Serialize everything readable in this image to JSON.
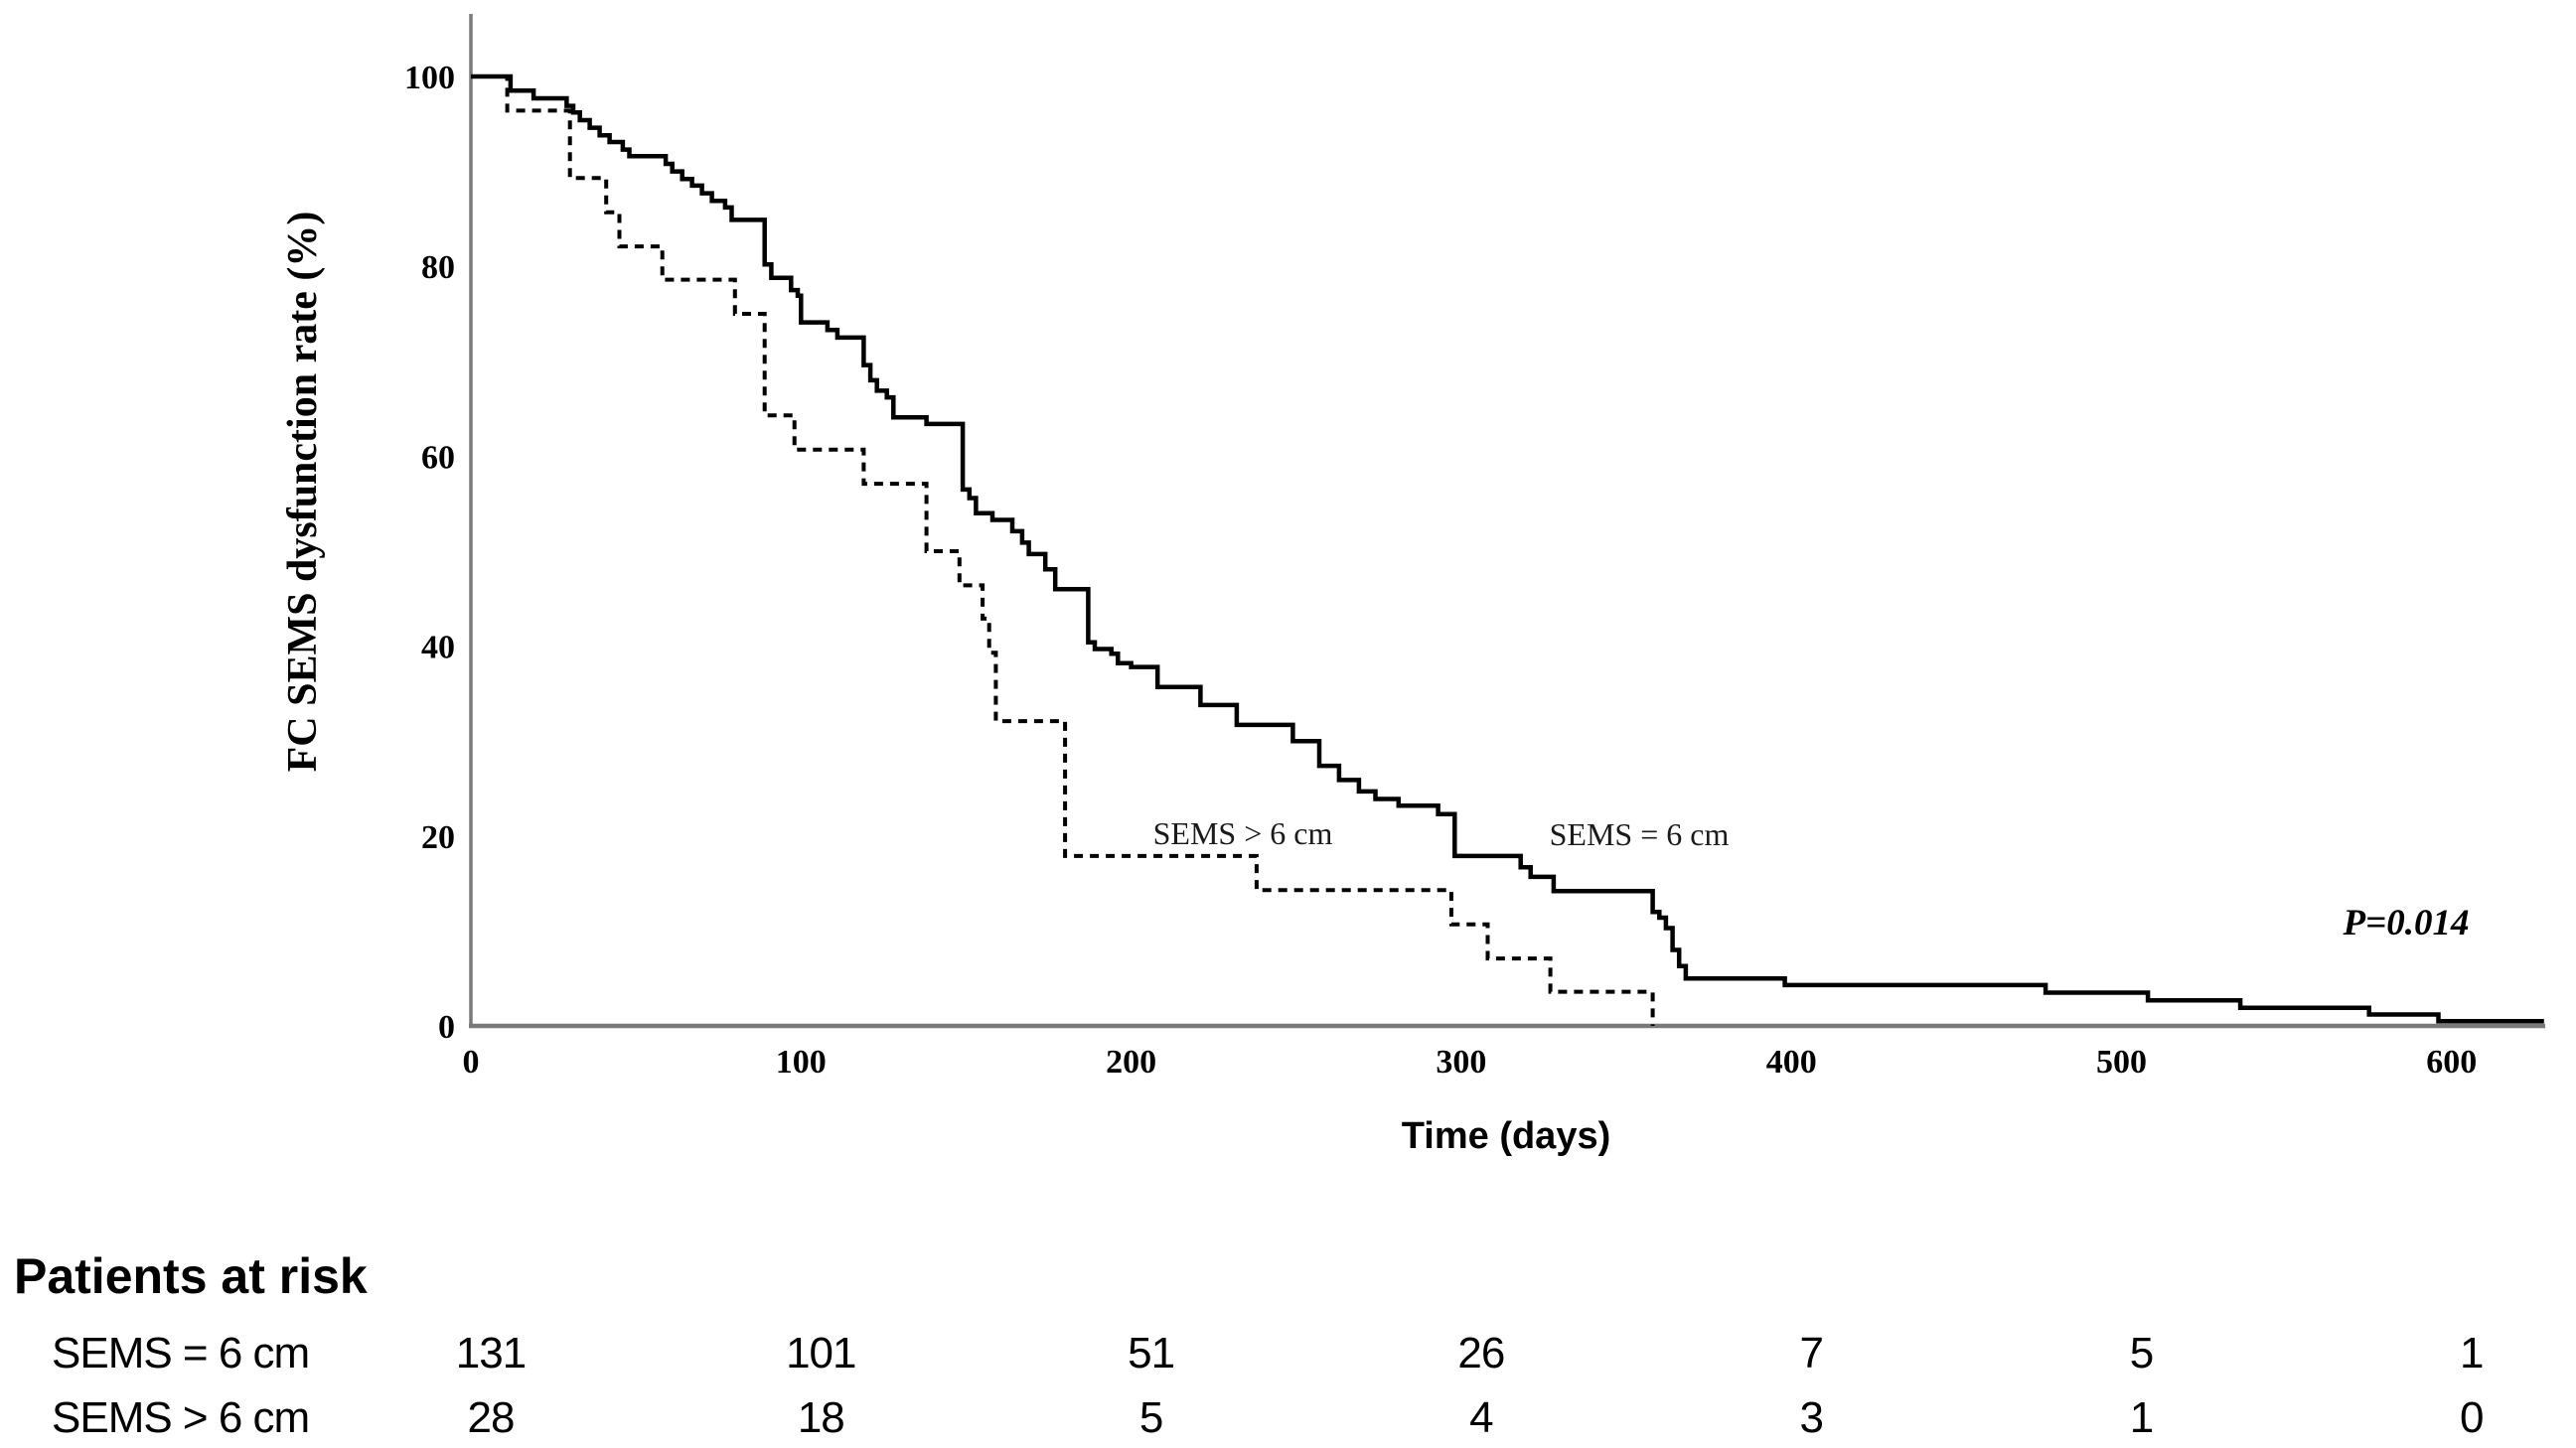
{
  "chart_data": {
    "type": "line",
    "subtype": "kaplan-meier-step",
    "title": "",
    "xlabel": "Time (days)",
    "ylabel": "FC SEMS dysfunction rate (%)",
    "xlim": [
      0,
      628
    ],
    "ylim": [
      0,
      100
    ],
    "xticks": [
      0,
      100,
      200,
      300,
      400,
      500,
      600
    ],
    "yticks": [
      0,
      20,
      40,
      60,
      80,
      100
    ],
    "grid": false,
    "legend_position": "inline-labels",
    "axis_color": "#7a7a7a",
    "curve_color": "#000000",
    "annotations": [
      {
        "text": "P=0.014"
      }
    ],
    "series": [
      {
        "name": "SEMS = 6 cm",
        "style": "solid",
        "color": "#000000",
        "end_day": 628,
        "steps": [
          [
            0,
            100
          ],
          [
            12,
            98.5
          ],
          [
            19,
            97.7
          ],
          [
            29,
            96.9
          ],
          [
            31,
            96.2
          ],
          [
            33,
            95.4
          ],
          [
            36,
            94.6
          ],
          [
            39,
            93.8
          ],
          [
            42,
            93.1
          ],
          [
            46,
            92.3
          ],
          [
            48,
            91.6
          ],
          [
            59,
            90.8
          ],
          [
            61,
            90.0
          ],
          [
            64,
            89.2
          ],
          [
            67,
            88.5
          ],
          [
            70,
            87.7
          ],
          [
            73,
            86.9
          ],
          [
            77,
            86.2
          ],
          [
            79,
            84.9
          ],
          [
            89,
            80.2
          ],
          [
            91,
            78.8
          ],
          [
            97,
            77.5
          ],
          [
            99,
            76.9
          ],
          [
            100,
            74.1
          ],
          [
            108,
            73.3
          ],
          [
            111,
            72.5
          ],
          [
            119,
            69.6
          ],
          [
            121,
            68.0
          ],
          [
            123,
            66.9
          ],
          [
            126,
            66.2
          ],
          [
            128,
            64.1
          ],
          [
            138,
            63.4
          ],
          [
            149,
            56.5
          ],
          [
            151,
            55.6
          ],
          [
            153,
            54.0
          ],
          [
            158,
            53.3
          ],
          [
            164,
            52.1
          ],
          [
            167,
            50.9
          ],
          [
            169,
            49.7
          ],
          [
            174,
            48.1
          ],
          [
            177,
            46.0
          ],
          [
            187,
            40.4
          ],
          [
            189,
            39.7
          ],
          [
            194,
            39.2
          ],
          [
            196,
            38.2
          ],
          [
            200,
            37.8
          ],
          [
            208,
            35.7
          ],
          [
            221,
            33.8
          ],
          [
            232,
            31.7
          ],
          [
            249,
            30.0
          ],
          [
            257,
            27.4
          ],
          [
            263,
            25.9
          ],
          [
            269,
            24.7
          ],
          [
            274,
            23.9
          ],
          [
            281,
            23.2
          ],
          [
            293,
            22.3
          ],
          [
            298,
            17.9
          ],
          [
            318,
            16.7
          ],
          [
            321,
            15.7
          ],
          [
            328,
            14.2
          ],
          [
            358,
            12.0
          ],
          [
            360,
            11.4
          ],
          [
            362,
            10.3
          ],
          [
            364,
            8.0
          ],
          [
            366,
            6.3
          ],
          [
            368,
            5.0
          ],
          [
            398,
            4.3
          ],
          [
            477,
            3.5
          ],
          [
            508,
            2.7
          ],
          [
            536,
            1.9
          ],
          [
            575,
            1.2
          ],
          [
            596,
            0.5
          ]
        ]
      },
      {
        "name": "SEMS > 6 cm",
        "style": "dashed",
        "color": "#000000",
        "end_day": 358,
        "steps": [
          [
            0,
            100
          ],
          [
            11,
            96.4
          ],
          [
            30,
            89.3
          ],
          [
            41,
            85.7
          ],
          [
            45,
            82.1
          ],
          [
            58,
            78.6
          ],
          [
            80,
            75.0
          ],
          [
            89,
            64.3
          ],
          [
            98,
            60.7
          ],
          [
            119,
            57.1
          ],
          [
            138,
            50.0
          ],
          [
            148,
            46.4
          ],
          [
            155,
            42.9
          ],
          [
            157,
            39.3
          ],
          [
            159,
            32.1
          ],
          [
            180,
            17.9
          ],
          [
            238,
            14.3
          ],
          [
            297,
            10.7
          ],
          [
            308,
            7.1
          ],
          [
            327,
            3.6
          ],
          [
            358,
            0
          ]
        ]
      }
    ],
    "risk_table": {
      "title": "Patients at risk",
      "time_points": [
        0,
        100,
        200,
        300,
        400,
        500,
        600
      ],
      "rows": [
        {
          "label": "SEMS = 6 cm",
          "counts": [
            131,
            101,
            51,
            26,
            7,
            5,
            1
          ]
        },
        {
          "label": "SEMS > 6 cm",
          "counts": [
            28,
            18,
            5,
            4,
            3,
            1,
            0
          ]
        }
      ]
    }
  }
}
